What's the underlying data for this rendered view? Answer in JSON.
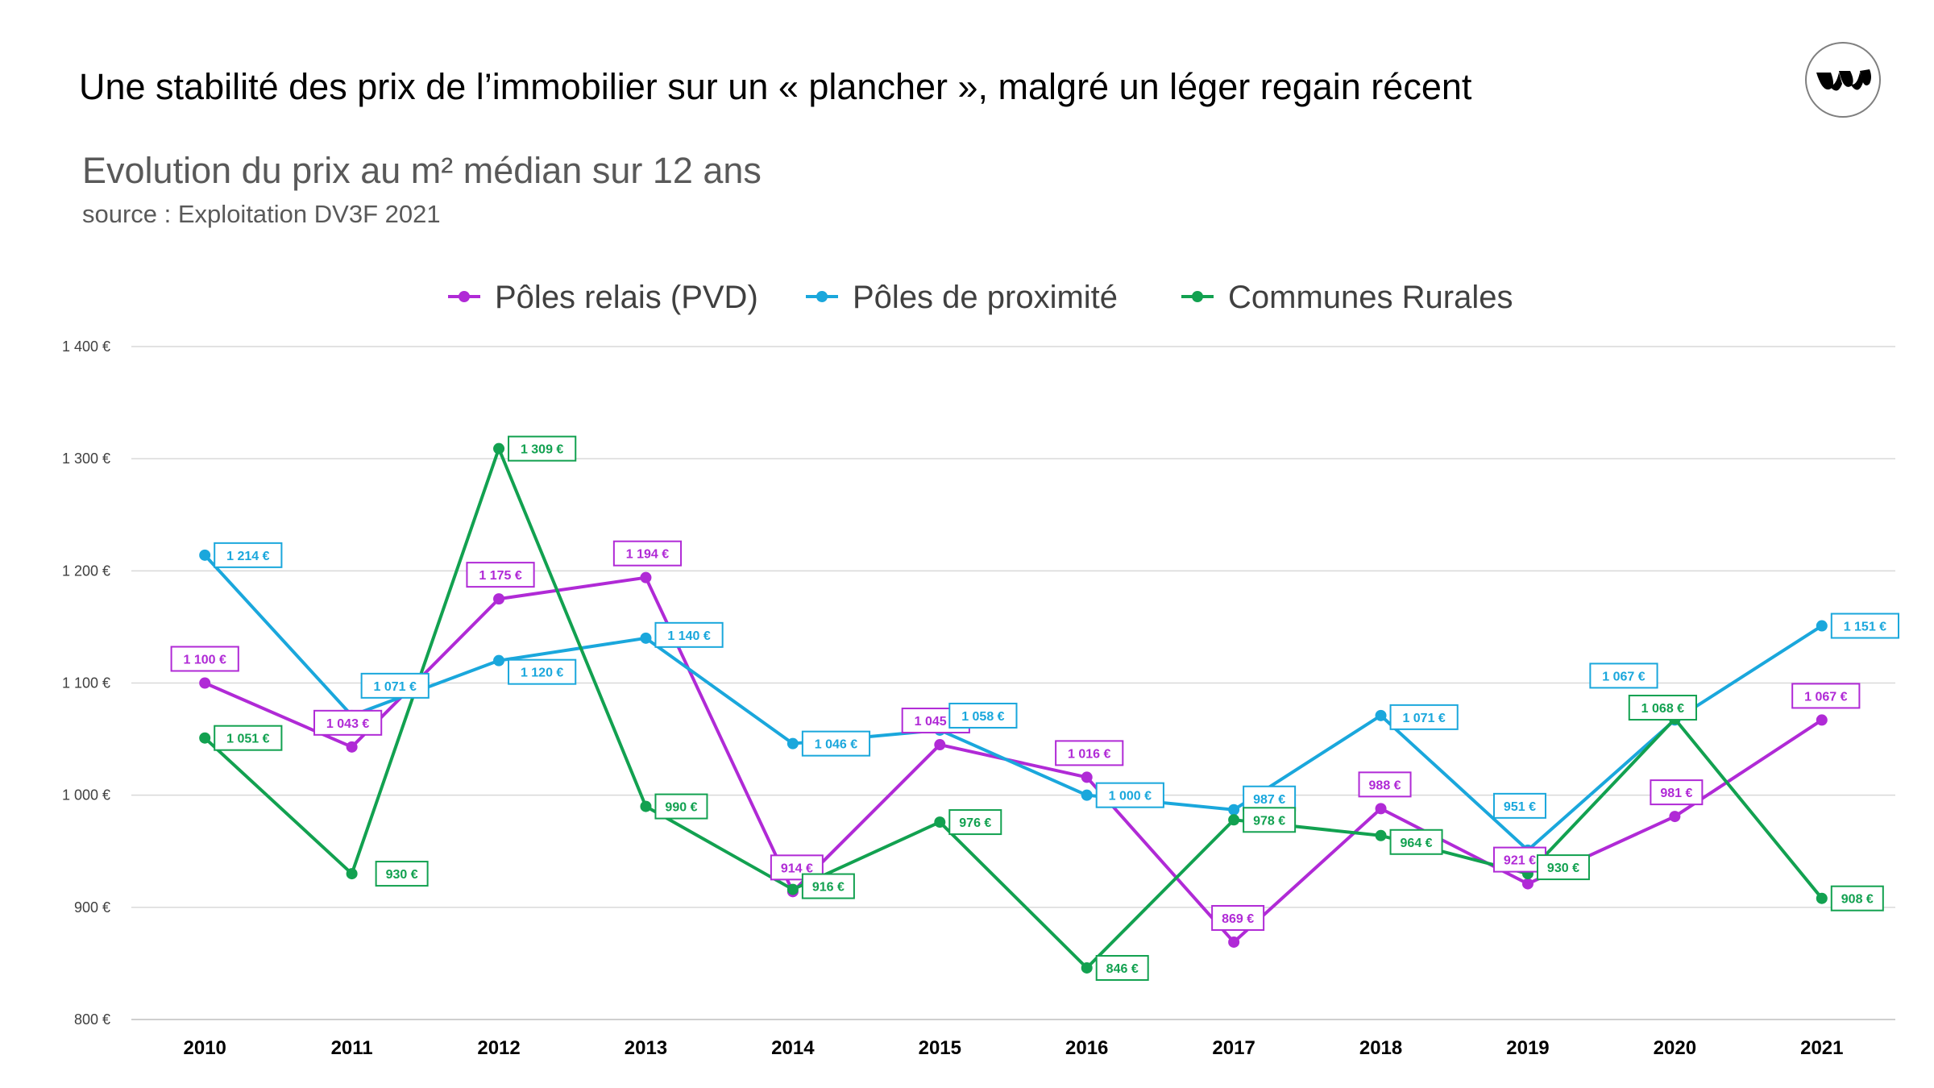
{
  "header": {
    "title": "Une stabilité des prix de l’immobilier sur un « plancher », malgré un léger regain récent",
    "logo_icon": "brand-logo-icon"
  },
  "chart_data": {
    "type": "line",
    "title": "Evolution du prix au m² médian sur 12 ans",
    "subtitle": "source : Exploitation DV3F 2021",
    "xlabel": "",
    "ylabel": "",
    "ylim": [
      800,
      1400
    ],
    "yticks": [
      800,
      900,
      1000,
      1100,
      1200,
      1300,
      1400
    ],
    "ytick_labels": [
      "800 €",
      "900 €",
      "1 000 €",
      "1 100 €",
      "1 200 €",
      "1 300 €",
      "1 400 €"
    ],
    "grid": true,
    "legend_position": "top-center",
    "categories": [
      "2010",
      "2011",
      "2012",
      "2013",
      "2014",
      "2015",
      "2016",
      "2017",
      "2018",
      "2019",
      "2020",
      "2021"
    ],
    "series": [
      {
        "name": "Pôles relais (PVD)",
        "color": "#b02ad6",
        "values": [
          1100,
          1043,
          1175,
          1194,
          914,
          1045,
          1016,
          869,
          988,
          921,
          981,
          1067
        ],
        "labels": [
          "1 100 €",
          "1 043 €",
          "1 175 €",
          "1 194 €",
          "914 €",
          "1 045 €",
          "1 016 €",
          "869 €",
          "988 €",
          "921 €",
          "981 €",
          "1 067 €"
        ]
      },
      {
        "name": "Pôles de proximité",
        "color": "#1aa7dc",
        "values": [
          1214,
          1071,
          1120,
          1140,
          1046,
          1058,
          1000,
          987,
          1071,
          951,
          1067,
          1151
        ],
        "labels": [
          "1 214 €",
          "1 071 €",
          "1 120 €",
          "1 140 €",
          "1 046 €",
          "1 058 €",
          "1 000 €",
          "987 €",
          "1 071 €",
          "951 €",
          "1 067 €",
          "1 151 €"
        ]
      },
      {
        "name": "Communes Rurales",
        "color": "#12a150",
        "values": [
          1051,
          930,
          1309,
          990,
          916,
          976,
          846,
          978,
          964,
          930,
          1068,
          908
        ],
        "labels": [
          "1 051 €",
          "930 €",
          "1 309 €",
          "990 €",
          "916 €",
          "976 €",
          "846 €",
          "978 €",
          "964 €",
          "930 €",
          "1 068 €",
          "908 €"
        ]
      }
    ]
  }
}
